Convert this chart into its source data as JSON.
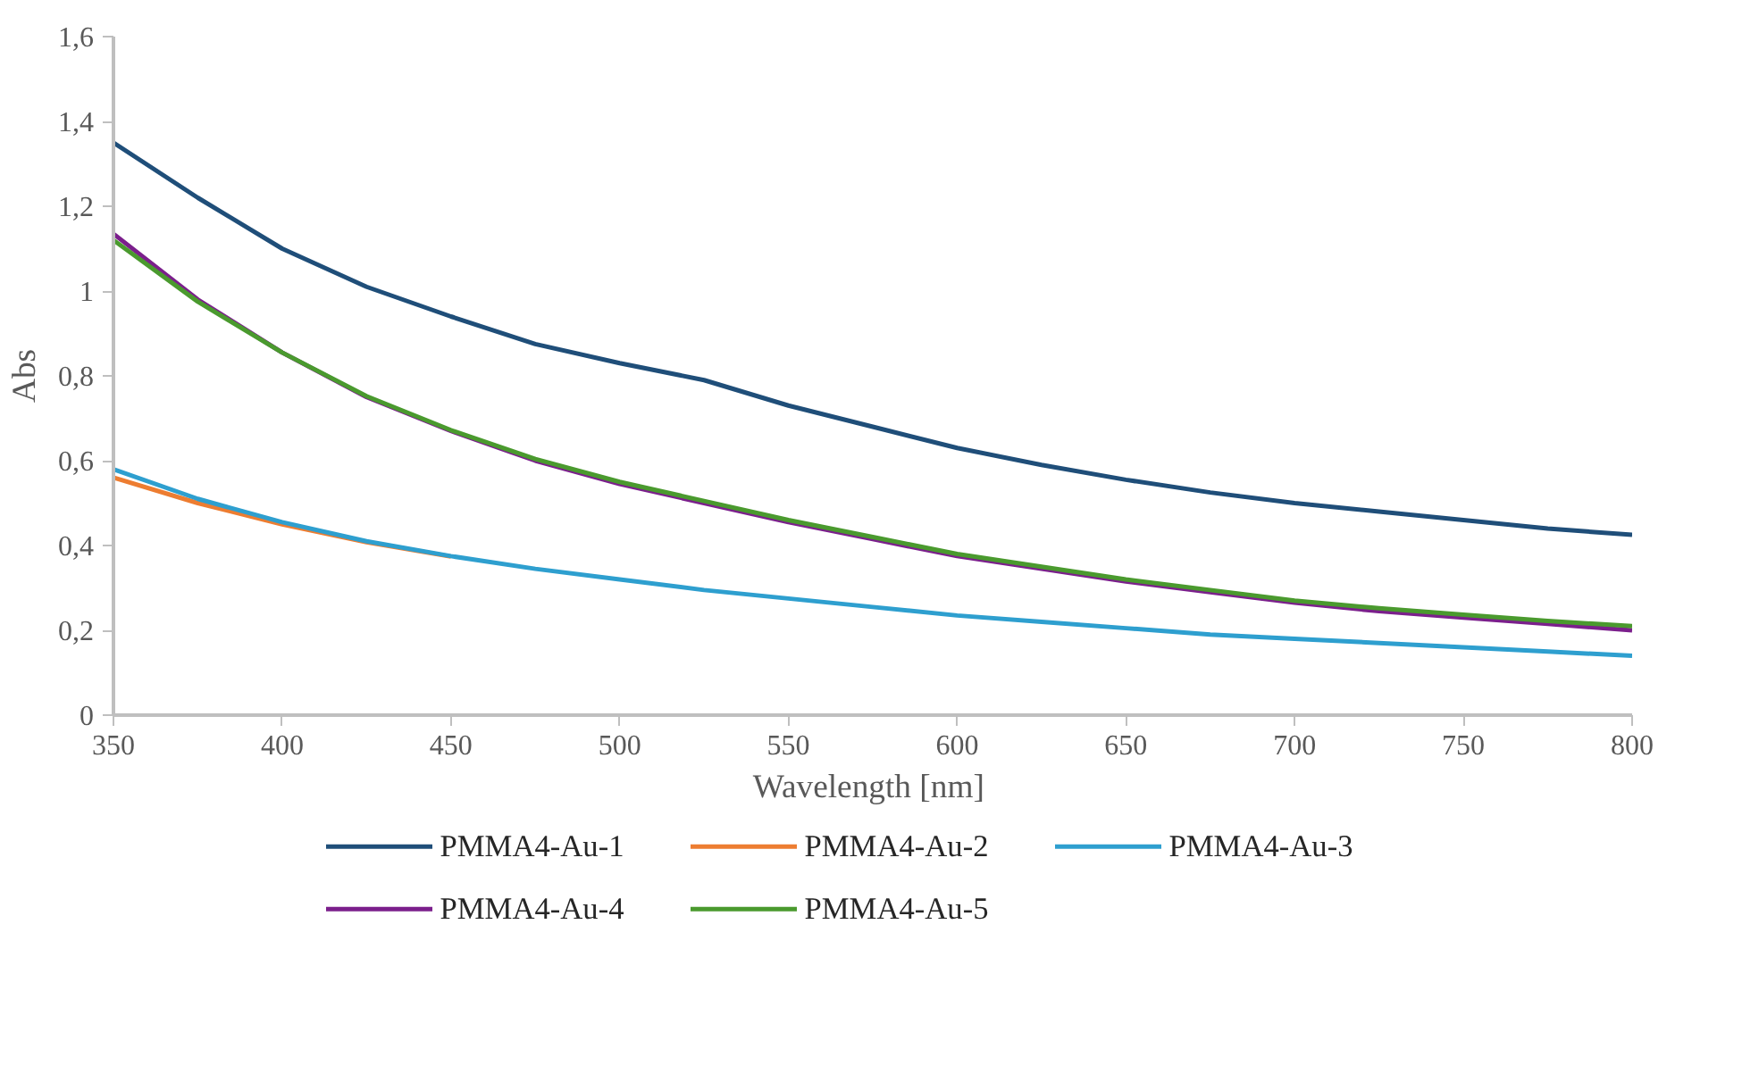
{
  "chart_data": {
    "type": "line",
    "xlabel": "Wavelength  [nm]",
    "ylabel": "Abs",
    "x": [
      350,
      375,
      400,
      425,
      450,
      475,
      500,
      525,
      550,
      575,
      600,
      625,
      650,
      675,
      700,
      725,
      750,
      775,
      800
    ],
    "xlim": [
      350,
      800
    ],
    "xticks": [
      350,
      400,
      450,
      500,
      550,
      600,
      650,
      700,
      750,
      800
    ],
    "ylim": [
      0,
      1.6
    ],
    "yticks": [
      0,
      {
        "value": 0.2,
        "label": "0,2"
      },
      {
        "value": 0.4,
        "label": "0,4"
      },
      {
        "value": 0.6,
        "label": "0,6"
      },
      {
        "value": 0.8,
        "label": "0,8"
      },
      1,
      {
        "value": 1.2,
        "label": "1,2"
      },
      {
        "value": 1.4,
        "label": "1,4"
      },
      {
        "value": 1.6,
        "label": "1,6"
      }
    ],
    "grid": false,
    "legend": "bottom",
    "marker": "none",
    "line_style": "solid",
    "series": [
      {
        "name": "PMMA4-Au-1",
        "color": "#1f4e79",
        "values": [
          1.35,
          1.22,
          1.1,
          1.01,
          0.94,
          0.875,
          0.83,
          0.79,
          0.73,
          0.68,
          0.63,
          0.59,
          0.555,
          0.525,
          0.5,
          0.48,
          0.46,
          0.44,
          0.425
        ]
      },
      {
        "name": "PMMA4-Au-2",
        "color": "#ed7d31",
        "values": [
          0.56,
          0.5,
          0.45,
          0.408,
          0.374,
          null,
          null,
          null,
          null,
          null,
          null,
          null,
          null,
          null,
          null,
          null,
          null,
          null,
          null
        ]
      },
      {
        "name": "PMMA4-Au-3",
        "color": "#2e9fcf",
        "values": [
          0.58,
          0.51,
          0.455,
          0.41,
          0.375,
          0.345,
          0.32,
          0.295,
          0.275,
          0.255,
          0.235,
          0.22,
          0.205,
          0.19,
          0.18,
          0.17,
          0.16,
          0.15,
          0.14
        ]
      },
      {
        "name": "PMMA4-Au-4",
        "color": "#7b1f8c",
        "values": [
          1.135,
          0.98,
          0.855,
          0.75,
          0.67,
          0.6,
          0.545,
          0.5,
          0.455,
          0.415,
          0.375,
          0.345,
          0.315,
          0.29,
          0.265,
          0.245,
          0.23,
          0.215,
          0.2
        ]
      },
      {
        "name": "PMMA4-Au-5",
        "color": "#4a9a2e",
        "values": [
          1.12,
          0.975,
          0.855,
          0.752,
          0.672,
          0.604,
          0.55,
          0.505,
          0.46,
          0.42,
          0.38,
          0.35,
          0.32,
          0.295,
          0.27,
          0.252,
          0.237,
          0.222,
          0.21
        ]
      }
    ]
  }
}
